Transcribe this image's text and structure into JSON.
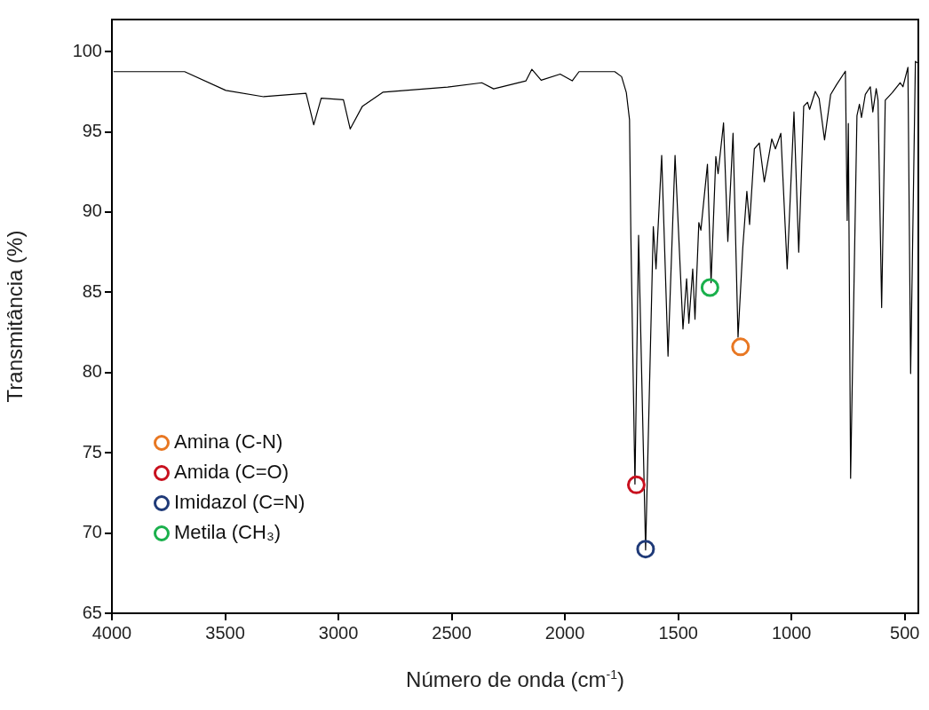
{
  "chart_data": {
    "type": "line",
    "xlabel": "Número de onda (cm$^{-1}$)",
    "ylabel": "Transmitância (%)",
    "xlim": [
      4000,
      440
    ],
    "xticks": [
      4000,
      3500,
      3000,
      2500,
      2000,
      1500,
      1000,
      500
    ],
    "ylim": [
      65,
      102
    ],
    "yticks": [
      65,
      70,
      75,
      80,
      85,
      90,
      95,
      100
    ],
    "grid": false,
    "legend": "bottom left",
    "series": [
      {
        "type": "line",
        "color": "#000000",
        "marker": "none",
        "x": [
          3993,
          3679,
          3497,
          3330,
          3143,
          3109,
          3076,
          2978,
          2948,
          2894,
          2804,
          2518,
          2367,
          2315,
          2172,
          2146,
          2105,
          2021,
          1968,
          1938,
          1780,
          1750,
          1729,
          1715,
          1709,
          1691,
          1675,
          1644,
          1610,
          1598,
          1573,
          1545,
          1514,
          1479,
          1463,
          1453,
          1436,
          1426,
          1409,
          1400,
          1371,
          1355,
          1334,
          1324,
          1300,
          1281,
          1258,
          1236,
          1215,
          1197,
          1185,
          1164,
          1142,
          1120,
          1087,
          1071,
          1047,
          1019,
          989,
          968,
          946,
          929,
          920,
          895,
          878,
          854,
          827,
          801,
          762,
          754,
          749,
          739,
          711,
          700,
          691,
          674,
          652,
          641,
          626,
          618,
          602,
          586,
          555,
          520,
          508,
          486,
          474,
          453,
          445
        ],
        "values": [
          98.75,
          98.75,
          97.58,
          97.19,
          97.4,
          95.44,
          97.1,
          97.0,
          95.18,
          96.6,
          97.47,
          97.79,
          98.06,
          97.68,
          98.18,
          98.9,
          98.22,
          98.6,
          98.18,
          98.75,
          98.75,
          98.44,
          97.44,
          95.76,
          88.51,
          73.05,
          88.55,
          68.94,
          89.1,
          86.46,
          93.53,
          81.02,
          93.53,
          82.72,
          85.85,
          83.07,
          86.46,
          83.32,
          89.35,
          88.87,
          92.98,
          85.6,
          93.46,
          92.39,
          95.56,
          88.17,
          94.91,
          82.2,
          87.78,
          91.29,
          89.23,
          93.94,
          94.3,
          91.89,
          94.56,
          93.94,
          94.91,
          86.46,
          96.24,
          87.5,
          96.6,
          96.84,
          96.4,
          97.52,
          97.08,
          94.5,
          97.33,
          97.94,
          98.78,
          89.48,
          95.52,
          73.41,
          96.0,
          96.72,
          95.89,
          97.33,
          97.81,
          96.24,
          97.69,
          96.97,
          84.05,
          96.97,
          97.44,
          98.06,
          97.81,
          99.02,
          79.94,
          99.39,
          99.3
        ]
      },
      {
        "type": "scatter",
        "name": "Amina (C-N)",
        "color": "#e87722",
        "marker": "circle",
        "x": [
          1225
        ],
        "values": [
          81.6
        ]
      },
      {
        "type": "scatter",
        "name": "Amida (C=O)",
        "color": "#c8101e",
        "marker": "circle",
        "x": [
          1685
        ],
        "values": [
          73.0
        ]
      },
      {
        "type": "scatter",
        "name": "Imidazol (C=N)",
        "color": "#1f3a78",
        "marker": "circle",
        "x": [
          1644
        ],
        "values": [
          69.0
        ]
      },
      {
        "type": "scatter",
        "name": "Metila (CH₃)",
        "color": "#1ab04c",
        "marker": "circle",
        "x": [
          1360
        ],
        "values": [
          85.3
        ]
      }
    ]
  }
}
